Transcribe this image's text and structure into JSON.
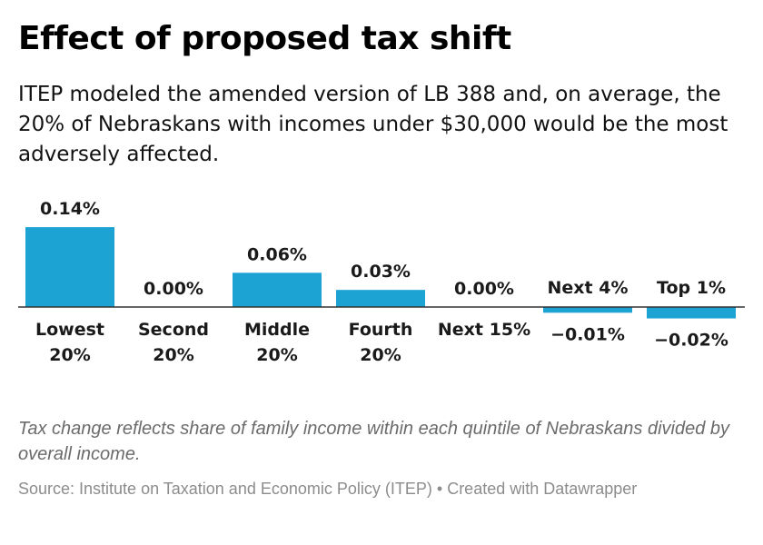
{
  "header": {
    "title": "Effect of proposed tax shift",
    "subtitle": "ITEP modeled the amended version of LB 388 and, on average, the 20% of Nebraskans with incomes under $30,000 would be the most adversely affected."
  },
  "footer": {
    "note": "Tax change reflects share of family income within each quintile of Nebraskans divided by overall income.",
    "source": "Source: Institute on Taxation and Economic Policy (ITEP) • Created with Datawrapper"
  },
  "colors": {
    "bar": "#1ca3d4",
    "axis": "#333333"
  },
  "chart_data": {
    "type": "bar",
    "categories": [
      [
        "Lowest",
        "20%"
      ],
      [
        "Second",
        "20%"
      ],
      [
        "Middle",
        "20%"
      ],
      [
        "Fourth",
        "20%"
      ],
      [
        "Next 15%"
      ],
      [
        "Next 4%"
      ],
      [
        "Top 1%"
      ]
    ],
    "values": [
      0.14,
      0.0,
      0.06,
      0.03,
      0.0,
      -0.01,
      -0.02
    ],
    "value_labels": [
      "0.14%",
      "0.00%",
      "0.06%",
      "0.03%",
      "0.00%",
      "−0.01%",
      "−0.02%"
    ],
    "unit": "%"
  }
}
